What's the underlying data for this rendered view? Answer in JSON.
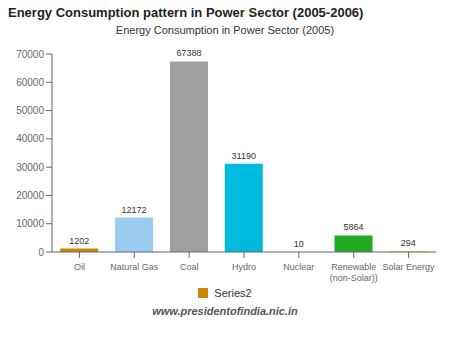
{
  "chart_data": {
    "type": "bar",
    "title": "Energy Consumption pattern in Power Sector (2005-2006)",
    "subtitle": "Energy Consumption in Power Sector (2005)",
    "annotations": [
      "www.presidentofindia.nic.in"
    ],
    "categories": [
      "Oil",
      "Natural Gas",
      "Coal",
      "Hydro",
      "Nuclear",
      "Renewable\n(non-Solar))",
      "Solar Energy"
    ],
    "series": [
      {
        "name": "Series2",
        "color": "#CC8800",
        "values": [
          1202,
          12172,
          67388,
          31190,
          10,
          5864,
          294
        ]
      }
    ],
    "colors": [
      "#CC8800",
      "#99CCEE",
      "#A0A0A0",
      "#00BBDD",
      "#CC2222",
      "#22AA22",
      "#CCCC00"
    ],
    "ylim": [
      0,
      70000
    ],
    "yticks": [
      0,
      10000,
      20000,
      30000,
      40000,
      50000,
      60000,
      70000
    ],
    "grid": false,
    "legend": "bottom",
    "data_labels": true
  }
}
